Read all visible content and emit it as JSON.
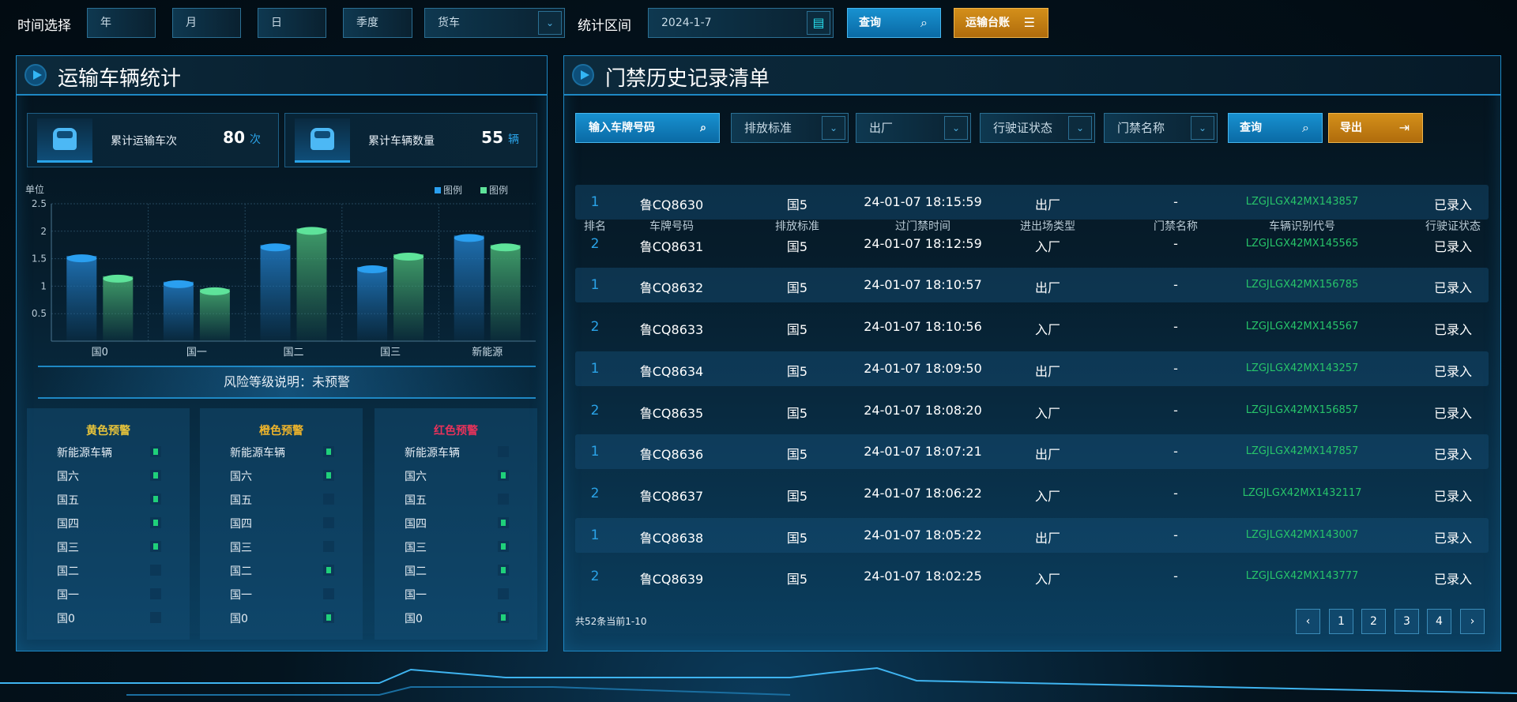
{
  "topbar": {
    "time_label": "时间选择",
    "year": "年",
    "month": "月",
    "day": "日",
    "quarter": "季度",
    "vehicle_type": "货车",
    "range_label": "统计区间",
    "date": "2024-1-7",
    "query": "查询",
    "ledger": "运输台账"
  },
  "left": {
    "title": "运输车辆统计",
    "stats": [
      {
        "name": "累计运输车次",
        "value": "80",
        "unit": "次"
      },
      {
        "name": "累计车辆数量",
        "value": "55",
        "unit": "辆"
      }
    ],
    "risk_label": "风险等级说明：未预警",
    "warnings": [
      {
        "title": "黄色预警",
        "color": "#e8c43a",
        "items": [
          {
            "label": "新能源车辆",
            "on": true
          },
          {
            "label": "国六",
            "on": true
          },
          {
            "label": "国五",
            "on": true
          },
          {
            "label": "国四",
            "on": true
          },
          {
            "label": "国三",
            "on": true
          },
          {
            "label": "国二",
            "on": false
          },
          {
            "label": "国一",
            "on": false
          },
          {
            "label": "国0",
            "on": false
          }
        ]
      },
      {
        "title": "橙色预警",
        "color": "#f0b52a",
        "items": [
          {
            "label": "新能源车辆",
            "on": true
          },
          {
            "label": "国六",
            "on": true
          },
          {
            "label": "国五",
            "on": false
          },
          {
            "label": "国四",
            "on": false
          },
          {
            "label": "国三",
            "on": false
          },
          {
            "label": "国二",
            "on": true
          },
          {
            "label": "国一",
            "on": false
          },
          {
            "label": "国0",
            "on": true
          }
        ]
      },
      {
        "title": "红色预警",
        "color": "#e8325a",
        "items": [
          {
            "label": "新能源车辆",
            "on": false
          },
          {
            "label": "国六",
            "on": true
          },
          {
            "label": "国五",
            "on": false
          },
          {
            "label": "国四",
            "on": true
          },
          {
            "label": "国三",
            "on": true
          },
          {
            "label": "国二",
            "on": true
          },
          {
            "label": "国一",
            "on": false
          },
          {
            "label": "国0",
            "on": true
          }
        ]
      }
    ]
  },
  "chart_data": {
    "type": "bar",
    "ylabel": "单位",
    "ylim": [
      0,
      2.5
    ],
    "yticks": [
      "0.5",
      "1",
      "1.5",
      "2",
      "2.5"
    ],
    "grid": true,
    "legend_position": "top-right",
    "categories": [
      "国0",
      "国一",
      "国二",
      "国三",
      "新能源"
    ],
    "series": [
      {
        "name": "图例",
        "color": "#2a9ff0",
        "values": [
          1.55,
          1.08,
          1.75,
          1.35,
          1.92
        ]
      },
      {
        "name": "图例",
        "color": "#5ee39a",
        "values": [
          1.18,
          0.95,
          2.05,
          1.58,
          1.75
        ]
      }
    ]
  },
  "right": {
    "title": "门禁历史记录清单",
    "filters": {
      "plate_placeholder": "输入车牌号码",
      "emission": "排放标准",
      "direction": "出厂",
      "license_status": "行驶证状态",
      "gate_name": "门禁名称",
      "query": "查询",
      "export": "导出"
    },
    "columns": [
      "排名",
      "车牌号码",
      "排放标准",
      "过门禁时间",
      "进出场类型",
      "门禁名称",
      "车辆识别代号",
      "行驶证状态"
    ],
    "rows": [
      [
        "1",
        "鲁CQ8630",
        "国5",
        "24-01-07 18:15:59",
        "出厂",
        "-",
        "LZGJLGX42MX143857",
        "已录入"
      ],
      [
        "2",
        "鲁CQ8631",
        "国5",
        "24-01-07 18:12:59",
        "入厂",
        "-",
        "LZGJLGX42MX145565",
        "已录入"
      ],
      [
        "1",
        "鲁CQ8632",
        "国5",
        "24-01-07 18:10:57",
        "出厂",
        "-",
        "LZGJLGX42MX156785",
        "已录入"
      ],
      [
        "2",
        "鲁CQ8633",
        "国5",
        "24-01-07 18:10:56",
        "入厂",
        "-",
        "LZGJLGX42MX145567",
        "已录入"
      ],
      [
        "1",
        "鲁CQ8634",
        "国5",
        "24-01-07 18:09:50",
        "出厂",
        "-",
        "LZGJLGX42MX143257",
        "已录入"
      ],
      [
        "2",
        "鲁CQ8635",
        "国5",
        "24-01-07 18:08:20",
        "入厂",
        "-",
        "LZGJLGX42MX156857",
        "已录入"
      ],
      [
        "1",
        "鲁CQ8636",
        "国5",
        "24-01-07 18:07:21",
        "出厂",
        "-",
        "LZGJLGX42MX147857",
        "已录入"
      ],
      [
        "2",
        "鲁CQ8637",
        "国5",
        "24-01-07 18:06:22",
        "入厂",
        "-",
        "LZGJLGX42MX1432117",
        "已录入"
      ],
      [
        "1",
        "鲁CQ8638",
        "国5",
        "24-01-07 18:05:22",
        "出厂",
        "-",
        "LZGJLGX42MX143007",
        "已录入"
      ],
      [
        "2",
        "鲁CQ8639",
        "国5",
        "24-01-07 18:02:25",
        "入厂",
        "-",
        "LZGJLGX42MX143777",
        "已录入"
      ]
    ],
    "pagination": {
      "summary": "共52条当前1-10",
      "prev": "‹",
      "pages": [
        "1",
        "2",
        "3",
        "4"
      ],
      "next": "›"
    }
  }
}
